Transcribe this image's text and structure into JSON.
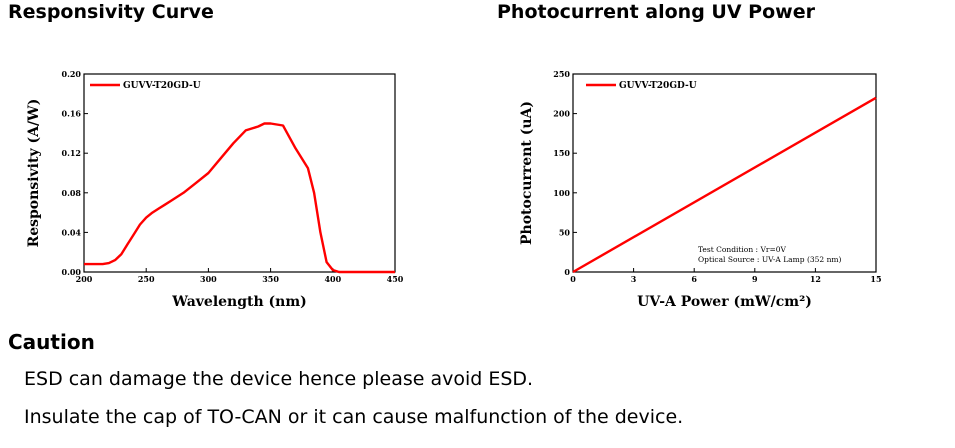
{
  "chart_data": [
    {
      "type": "line",
      "title": "Responsivity Curve",
      "xlabel": "Wavelength (nm)",
      "ylabel": "Responsivity (A/W)",
      "xlim": [
        200,
        450
      ],
      "ylim": [
        0,
        0.2
      ],
      "xticks": [
        "200",
        "250",
        "300",
        "350",
        "400",
        "450"
      ],
      "yticks": [
        "0.00",
        "0.04",
        "0.08",
        "0.12",
        "0.16",
        "0.20"
      ],
      "legend_position": "top-left",
      "grid": false,
      "series": [
        {
          "name": "GUVV-T20GD-U",
          "color": "#ff0000",
          "x": [
            200,
            215,
            220,
            225,
            230,
            235,
            240,
            245,
            250,
            255,
            260,
            265,
            270,
            280,
            290,
            300,
            310,
            320,
            330,
            340,
            345,
            350,
            360,
            370,
            380,
            385,
            390,
            395,
            400,
            405,
            450
          ],
          "y": [
            0.008,
            0.008,
            0.009,
            0.012,
            0.018,
            0.028,
            0.038,
            0.048,
            0.055,
            0.06,
            0.064,
            0.068,
            0.072,
            0.08,
            0.09,
            0.1,
            0.115,
            0.13,
            0.143,
            0.147,
            0.15,
            0.15,
            0.148,
            0.125,
            0.105,
            0.08,
            0.04,
            0.01,
            0.002,
            0.0,
            0.0
          ]
        }
      ]
    },
    {
      "type": "line",
      "title": "Photocurrent along UV Power",
      "xlabel": "UV-A Power (mW/cm²)",
      "ylabel": "Photocurrent (uA)",
      "xlim": [
        0,
        15
      ],
      "ylim": [
        0,
        250
      ],
      "xticks": [
        "0",
        "3",
        "6",
        "9",
        "12",
        "15"
      ],
      "yticks": [
        "0",
        "50",
        "100",
        "150",
        "200",
        "250"
      ],
      "legend_position": "top-left",
      "grid": false,
      "annotations": [
        "Test Condition : Vr=0V",
        "Optical Source : UV-A Lamp (352 nm)"
      ],
      "series": [
        {
          "name": "GUVV-T20GD-U",
          "color": "#ff0000",
          "x": [
            0,
            15
          ],
          "y": [
            0,
            220
          ]
        }
      ]
    }
  ],
  "caution": {
    "title": "Caution",
    "lines": [
      "ESD can damage the device hence please avoid ESD.",
      "Insulate the cap of TO-CAN or it can cause malfunction of the device."
    ]
  }
}
